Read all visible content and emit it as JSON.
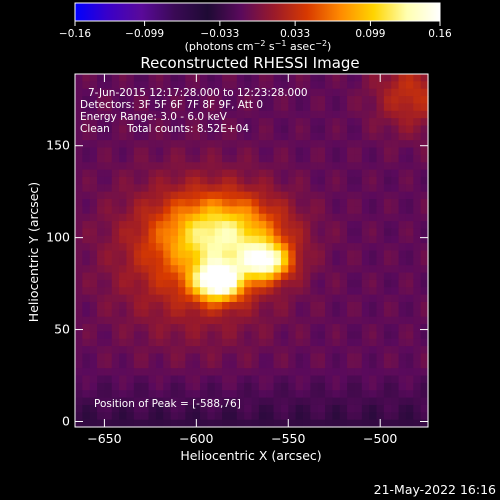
{
  "chart_data": {
    "type": "heatmap",
    "title": "Reconstructed RHESSI Image",
    "xlabel": "Heliocentric X (arcsec)",
    "ylabel": "Heliocentric Y (arcsec)",
    "xlim": [
      -666,
      -474
    ],
    "ylim": [
      -3,
      189
    ],
    "x_ticks": [
      {
        "value": -650,
        "label": "−650"
      },
      {
        "value": -600,
        "label": "−600"
      },
      {
        "value": -550,
        "label": "−550"
      },
      {
        "value": -500,
        "label": "−500"
      }
    ],
    "y_ticks": [
      {
        "value": 0,
        "label": "0"
      },
      {
        "value": 50,
        "label": "50"
      },
      {
        "value": 100,
        "label": "100"
      },
      {
        "value": 150,
        "label": "150"
      }
    ],
    "colorbar": {
      "range": [
        -0.16,
        0.16
      ],
      "ticks": [
        {
          "value": -0.16,
          "label": "−0.16"
        },
        {
          "value": -0.099,
          "label": "−0.099"
        },
        {
          "value": -0.033,
          "label": "−0.033"
        },
        {
          "value": 0.033,
          "label": "0.033"
        },
        {
          "value": 0.099,
          "label": "0.099"
        },
        {
          "value": 0.16,
          "label": "0.16"
        }
      ],
      "colors": [
        "#0000ff",
        "#3a00c8",
        "#5a0a9a",
        "#3a0a55",
        "#1e0a34",
        "#5a0a5c",
        "#9a1a2a",
        "#d83a00",
        "#ff8a00",
        "#ffd400",
        "#ffffb0",
        "#ffffff"
      ]
    },
    "sources": [
      {
        "x": -588,
        "y": 76,
        "sigma_x": 9,
        "sigma_y": 7,
        "amp": 0.16
      },
      {
        "x": -562,
        "y": 87,
        "sigma_x": 9,
        "sigma_y": 7,
        "amp": 0.13
      },
      {
        "x": -585,
        "y": 102,
        "sigma_x": 22,
        "sigma_y": 14,
        "amp": 0.1
      },
      {
        "x": -600,
        "y": 90,
        "sigma_x": 30,
        "sigma_y": 28,
        "amp": 0.055
      },
      {
        "x": -483,
        "y": 178,
        "sigma_x": 14,
        "sigma_y": 14,
        "amp": 0.045
      }
    ],
    "annotations": {
      "time": "7-Jun-2015 12:17:28.000 to 12:23:28.000",
      "detectors": "Detectors: 3F 5F 6F 7F 8F 9F, Att 0",
      "energy": "Energy Range: 3.0 - 6.0 keV",
      "clean": "Clean",
      "counts": "Total counts: 8.52E+04",
      "peak": "Position of Peak = [-588,76]"
    }
  },
  "footer": {
    "date": "21-May-2022 16:16"
  }
}
